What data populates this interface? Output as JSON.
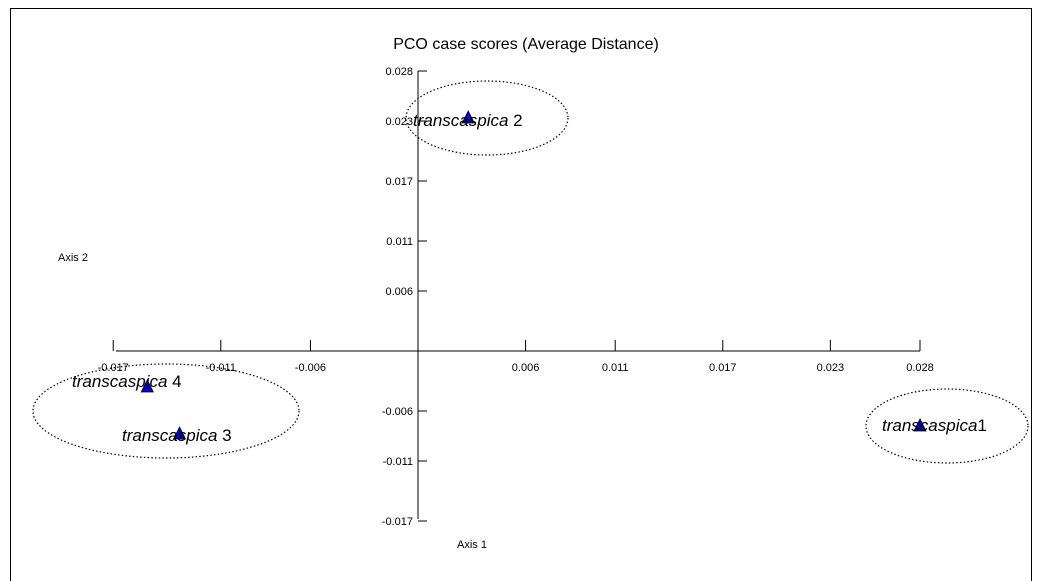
{
  "chart_data": {
    "type": "scatter",
    "title": "PCO case scores (Average Distance)",
    "xlabel": "Axis 1",
    "ylabel": "Axis 2",
    "xlim": [
      -0.017,
      0.028
    ],
    "ylim": [
      -0.017,
      0.028
    ],
    "x_ticks": [
      -0.017,
      -0.011,
      -0.006,
      0.006,
      0.011,
      0.017,
      0.023,
      0.028
    ],
    "y_ticks": [
      0.028,
      0.023,
      0.017,
      0.011,
      0.006,
      -0.006,
      -0.011,
      -0.017
    ],
    "marker": "triangle",
    "marker_color": "#0000cc",
    "points": [
      {
        "label_italic": "transcaspica",
        "label_suffix": "1",
        "x": 0.028,
        "y": -0.0075
      },
      {
        "label_italic": "transcaspica",
        "label_suffix": " 2",
        "x": 0.0028,
        "y": 0.0233
      },
      {
        "label_italic": "transcaspica",
        "label_suffix": " 3",
        "x": -0.0133,
        "y": -0.0083
      },
      {
        "label_italic": "transcaspica",
        "label_suffix": " 4",
        "x": -0.0151,
        "y": -0.0036
      }
    ],
    "clusters": [
      {
        "members": [
          "transcaspica 2"
        ]
      },
      {
        "members": [
          "transcaspica 3",
          "transcaspica 4"
        ]
      },
      {
        "members": [
          "transcaspica1"
        ]
      }
    ],
    "grid": false,
    "legend": "none"
  }
}
